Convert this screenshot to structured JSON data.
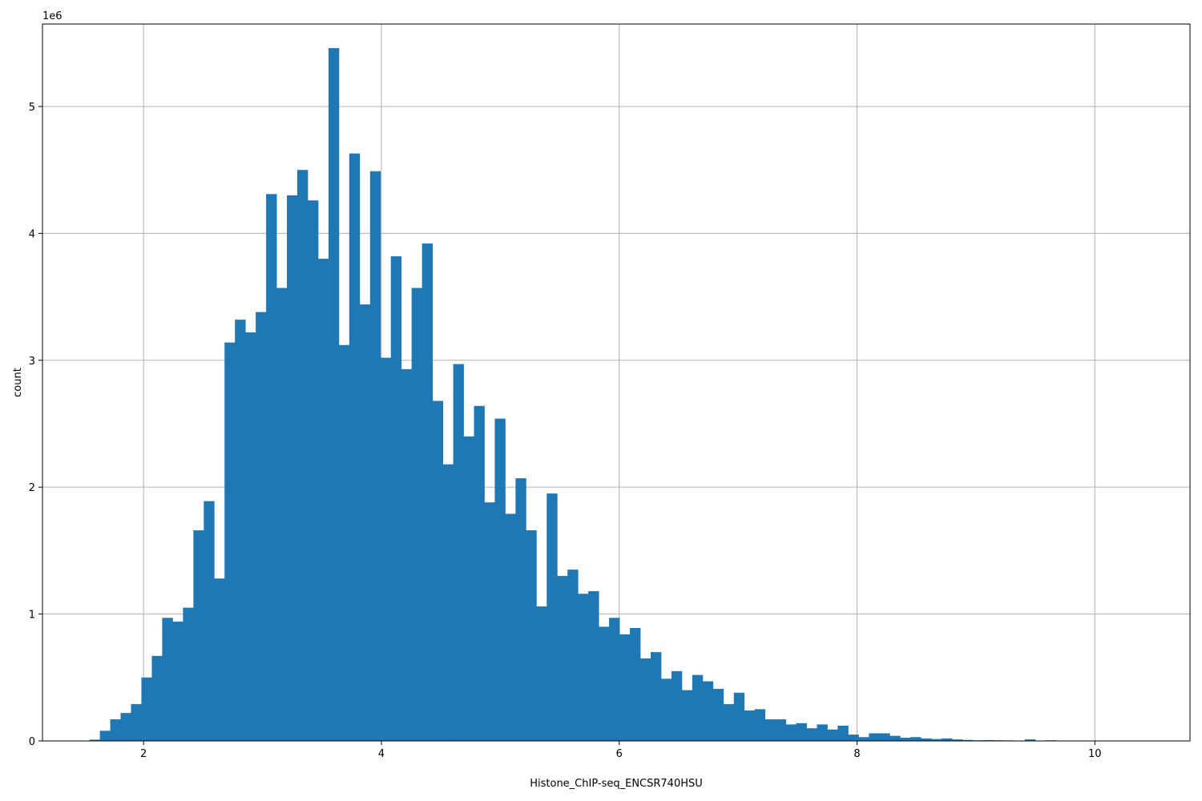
{
  "chart_data": {
    "type": "bar",
    "subtype": "histogram",
    "xlabel": "Histone_ChIP-seq_ENCSR740HSU",
    "ylabel": "count",
    "y_offset_label": "1e6",
    "xlim": [
      1.15,
      10.8
    ],
    "ylim": [
      0,
      5.65
    ],
    "y_unit_multiplier": 1000000,
    "grid": true,
    "bar_color": "#1f77b4",
    "xticks": [
      2,
      4,
      6,
      8,
      10
    ],
    "xtick_labels": [
      "2",
      "4",
      "6",
      "8",
      "10"
    ],
    "yticks": [
      0,
      1,
      2,
      3,
      4,
      5
    ],
    "ytick_labels": [
      "0",
      "1",
      "2",
      "3",
      "4",
      "5"
    ],
    "bin_width": 0.0874,
    "bin_start": 1.545,
    "values": [
      0.01,
      0.08,
      0.17,
      0.22,
      0.29,
      0.5,
      0.67,
      0.97,
      0.94,
      1.05,
      1.66,
      1.89,
      1.28,
      3.14,
      3.32,
      3.22,
      3.38,
      4.31,
      3.57,
      4.3,
      4.5,
      4.26,
      3.8,
      5.46,
      3.12,
      4.63,
      3.44,
      4.49,
      3.02,
      3.82,
      2.93,
      3.57,
      3.92,
      2.68,
      2.18,
      2.97,
      2.4,
      2.64,
      1.88,
      2.54,
      1.79,
      2.07,
      1.66,
      1.06,
      1.95,
      1.3,
      1.35,
      1.16,
      1.18,
      0.9,
      0.97,
      0.84,
      0.89,
      0.65,
      0.7,
      0.49,
      0.55,
      0.4,
      0.52,
      0.47,
      0.41,
      0.29,
      0.38,
      0.24,
      0.25,
      0.17,
      0.17,
      0.13,
      0.14,
      0.1,
      0.13,
      0.09,
      0.12,
      0.05,
      0.03,
      0.06,
      0.06,
      0.04,
      0.025,
      0.03,
      0.02,
      0.015,
      0.02,
      0.012,
      0.008,
      0.005,
      0.006,
      0.005,
      0.004,
      0.002,
      0.012,
      0.003,
      0.005,
      0.002,
      0.003,
      0.001,
      0.001,
      0.0,
      0.0,
      0.0
    ]
  }
}
